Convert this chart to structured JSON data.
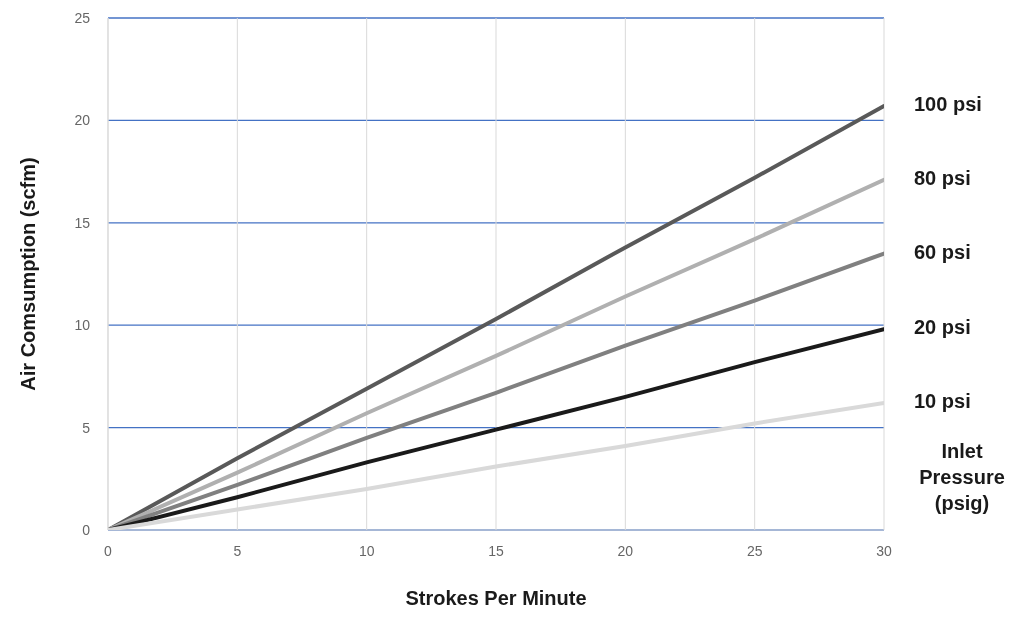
{
  "chart_data": {
    "type": "line",
    "xlabel": "Strokes Per Minute",
    "ylabel": "Air Comsumption (scfm)",
    "legend_title": "Inlet Pressure (psig)",
    "legend": "right",
    "grid": true,
    "marker": "none",
    "line_style": "solid",
    "x": [
      0,
      5,
      10,
      15,
      20,
      25,
      30
    ],
    "xlim": [
      0,
      30
    ],
    "xticks": [
      0,
      5,
      10,
      15,
      20,
      25,
      30
    ],
    "ylim": [
      0,
      25
    ],
    "yticks": [
      0,
      5,
      10,
      15,
      20,
      25
    ],
    "series": [
      {
        "name": "100 psi",
        "color": "#595959",
        "values": [
          0,
          3.5,
          6.9,
          10.3,
          13.8,
          17.2,
          20.7
        ]
      },
      {
        "name": "80 psi",
        "color": "#b0b0b0",
        "values": [
          0,
          2.8,
          5.7,
          8.5,
          11.4,
          14.2,
          17.1
        ]
      },
      {
        "name": "60 psi",
        "color": "#808080",
        "values": [
          0,
          2.2,
          4.5,
          6.7,
          9.0,
          11.2,
          13.5
        ]
      },
      {
        "name": "20 psi",
        "color": "#1a1a1a",
        "values": [
          0,
          1.6,
          3.3,
          4.9,
          6.5,
          8.2,
          9.8
        ]
      },
      {
        "name": "10 psi",
        "color": "#d9d9d9",
        "values": [
          0,
          1.0,
          2.0,
          3.1,
          4.1,
          5.2,
          6.2
        ]
      }
    ]
  }
}
